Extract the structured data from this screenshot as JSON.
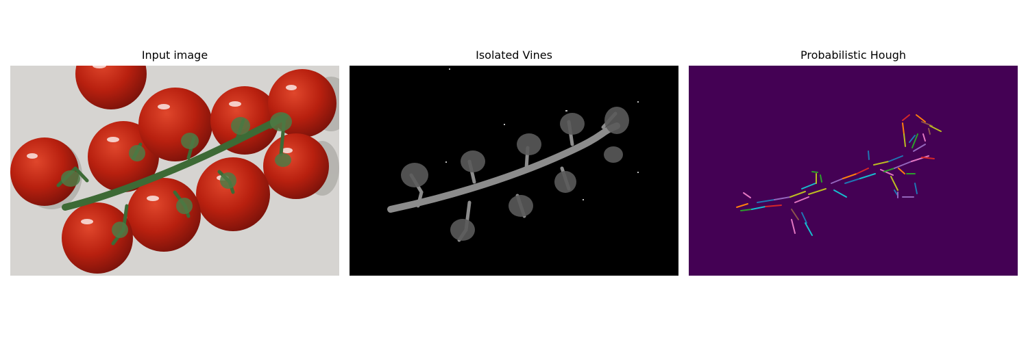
{
  "figure": {
    "panels": [
      {
        "title": "Input image"
      },
      {
        "title": "Isolated Vines"
      },
      {
        "title": "Probabilistic Hough"
      }
    ]
  },
  "colors": {
    "background": "#ffffff",
    "input_backdrop": "#d6d4d1",
    "tomato": "#b01f12",
    "vine_green": "#3d6a35",
    "isolated_bg": "#000000",
    "isolated_vine": "#8c8c8c",
    "hough_bg": "#440154",
    "segment_palette": [
      "#ff7f0e",
      "#2ca02c",
      "#1f77b4",
      "#d62728",
      "#9467bd",
      "#e377c2",
      "#bcbd22",
      "#17becf",
      "#8c564b"
    ]
  }
}
